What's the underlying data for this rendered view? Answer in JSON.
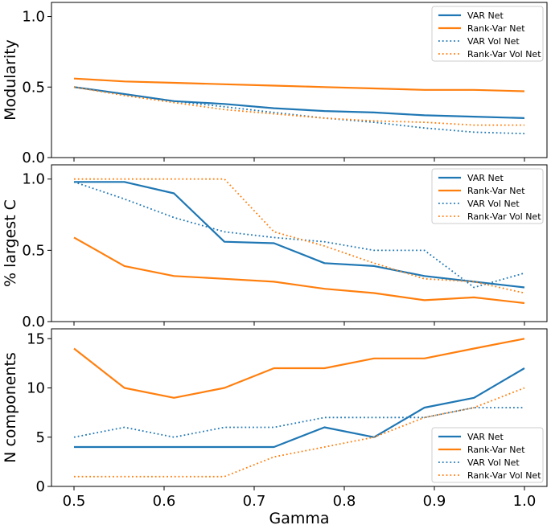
{
  "chart_data": [
    {
      "type": "line",
      "ylabel": "Modularity",
      "xlabel": "",
      "xlim": [
        0.475,
        1.025
      ],
      "ylim": [
        0.0,
        1.1
      ],
      "xticks": [
        "0.5",
        "0.6",
        "0.7",
        "0.8",
        "0.9",
        "1.0"
      ],
      "yticks": [
        "0.0",
        "0.5",
        "1.0"
      ],
      "ytick_values": [
        0.0,
        0.5,
        1.0
      ],
      "legend_position": "top-right",
      "x": [
        0.5,
        0.556,
        0.611,
        0.667,
        0.722,
        0.778,
        0.833,
        0.889,
        0.944,
        1.0
      ],
      "series": [
        {
          "name": "VAR Net",
          "style": "solid",
          "color": "#1f77b4",
          "values": [
            0.5,
            0.45,
            0.4,
            0.38,
            0.35,
            0.33,
            0.32,
            0.3,
            0.29,
            0.28
          ]
        },
        {
          "name": "Rank-Var Net",
          "style": "solid",
          "color": "#ff7f0e",
          "values": [
            0.56,
            0.54,
            0.53,
            0.52,
            0.51,
            0.5,
            0.49,
            0.48,
            0.48,
            0.47
          ]
        },
        {
          "name": "VAR Vol Net",
          "style": "dotted",
          "color": "#1f77b4",
          "values": [
            0.5,
            0.45,
            0.4,
            0.36,
            0.32,
            0.28,
            0.25,
            0.21,
            0.18,
            0.17
          ]
        },
        {
          "name": "Rank-Var Vol Net",
          "style": "dotted",
          "color": "#ff7f0e",
          "values": [
            0.5,
            0.44,
            0.39,
            0.34,
            0.31,
            0.28,
            0.26,
            0.25,
            0.23,
            0.23
          ]
        }
      ]
    },
    {
      "type": "line",
      "ylabel": "% largest C",
      "xlabel": "",
      "xlim": [
        0.475,
        1.025
      ],
      "ylim": [
        0.0,
        1.1
      ],
      "xticks": [
        "0.5",
        "0.6",
        "0.7",
        "0.8",
        "0.9",
        "1.0"
      ],
      "yticks": [
        "0.0",
        "0.5",
        "1.0"
      ],
      "ytick_values": [
        0.0,
        0.5,
        1.0
      ],
      "legend_position": "top-right",
      "x": [
        0.5,
        0.556,
        0.611,
        0.667,
        0.722,
        0.778,
        0.833,
        0.889,
        0.944,
        1.0
      ],
      "series": [
        {
          "name": "VAR Net",
          "style": "solid",
          "color": "#1f77b4",
          "values": [
            0.98,
            0.98,
            0.9,
            0.56,
            0.55,
            0.41,
            0.39,
            0.32,
            0.28,
            0.24
          ]
        },
        {
          "name": "Rank-Var Net",
          "style": "solid",
          "color": "#ff7f0e",
          "values": [
            0.59,
            0.39,
            0.32,
            0.3,
            0.28,
            0.23,
            0.2,
            0.15,
            0.17,
            0.13
          ]
        },
        {
          "name": "VAR Vol Net",
          "style": "dotted",
          "color": "#1f77b4",
          "values": [
            0.98,
            0.86,
            0.73,
            0.63,
            0.59,
            0.56,
            0.5,
            0.5,
            0.24,
            0.34
          ]
        },
        {
          "name": "Rank-Var Vol Net",
          "style": "dotted",
          "color": "#ff7f0e",
          "values": [
            1.0,
            1.0,
            1.0,
            1.0,
            0.63,
            0.53,
            0.41,
            0.3,
            0.28,
            0.2
          ]
        }
      ]
    },
    {
      "type": "line",
      "ylabel": "N components",
      "xlabel": "Gamma",
      "xlim": [
        0.475,
        1.025
      ],
      "ylim": [
        0,
        16
      ],
      "xticks": [
        "0.5",
        "0.6",
        "0.7",
        "0.8",
        "0.9",
        "1.0"
      ],
      "yticks": [
        "0",
        "5",
        "10",
        "15"
      ],
      "ytick_values": [
        0,
        5,
        10,
        15
      ],
      "legend_position": "bottom-right",
      "x": [
        0.5,
        0.556,
        0.611,
        0.667,
        0.722,
        0.778,
        0.833,
        0.889,
        0.944,
        1.0
      ],
      "series": [
        {
          "name": "VAR Net",
          "style": "solid",
          "color": "#1f77b4",
          "values": [
            4,
            4,
            4,
            4,
            4,
            6,
            5,
            8,
            9,
            12
          ]
        },
        {
          "name": "Rank-Var Net",
          "style": "solid",
          "color": "#ff7f0e",
          "values": [
            14,
            10,
            9,
            10,
            12,
            12,
            13,
            13,
            14,
            15
          ]
        },
        {
          "name": "VAR Vol Net",
          "style": "dotted",
          "color": "#1f77b4",
          "values": [
            5,
            6,
            5,
            6,
            6,
            7,
            7,
            7,
            8,
            8
          ]
        },
        {
          "name": "Rank-Var Vol Net",
          "style": "dotted",
          "color": "#ff7f0e",
          "values": [
            1,
            1,
            1,
            1,
            3,
            4,
            5,
            7,
            8,
            10
          ]
        }
      ]
    }
  ]
}
